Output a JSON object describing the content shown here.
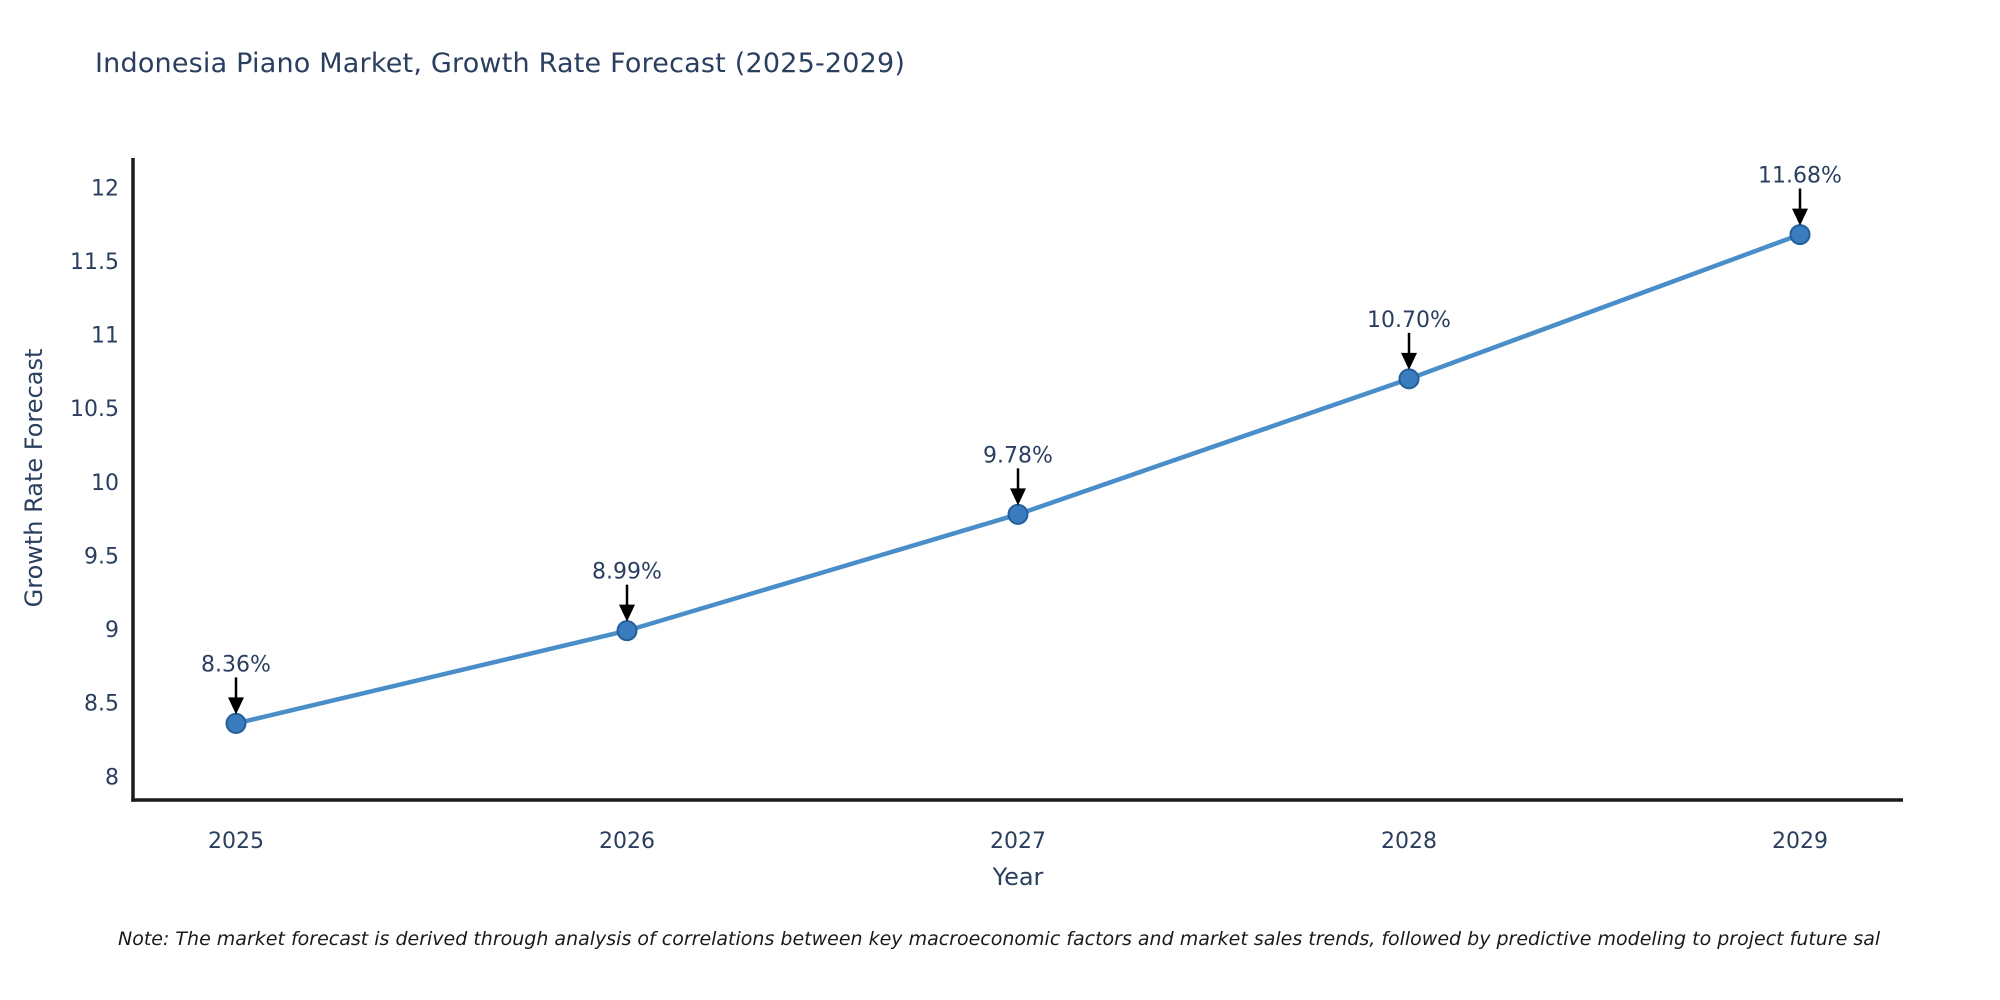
{
  "page": {
    "background": "#ffffff"
  },
  "note": "Note: The market forecast is derived through analysis of correlations between key macroeconomic factors and market sales trends, followed by predictive modeling to project future sal",
  "chart_data": {
    "type": "line",
    "title": "Indonesia Piano Market, Growth Rate Forecast (2025-2029)",
    "xlabel": "Year",
    "ylabel": "Growth Rate Forecast",
    "x": [
      "2025",
      "2026",
      "2027",
      "2028",
      "2029"
    ],
    "values": [
      8.36,
      8.99,
      9.78,
      10.7,
      11.68
    ],
    "point_labels": [
      "8.36%",
      "8.99%",
      "9.78%",
      "10.70%",
      "11.68%"
    ],
    "yticks": [
      8,
      8.5,
      9,
      9.5,
      10,
      10.5,
      11,
      11.5,
      12
    ],
    "ytick_labels": [
      "8",
      "8.5",
      "9",
      "9.5",
      "10",
      "10.5",
      "11",
      "11.5",
      "12"
    ],
    "ylim": [
      7.84,
      12.2
    ],
    "grid": false,
    "legend": "none",
    "annotation_style": "arrow-down-to-point",
    "colors": {
      "line": "#4a8ec9",
      "marker_fill": "#3a7dbf",
      "marker_edge": "#235e99",
      "axis_line": "#1b1b1b",
      "tick_text": "#2a3f5f",
      "annotation_text": "#2a3f5f",
      "annotation_arrow": "#000000",
      "note_text": "#1a1a1a"
    }
  }
}
